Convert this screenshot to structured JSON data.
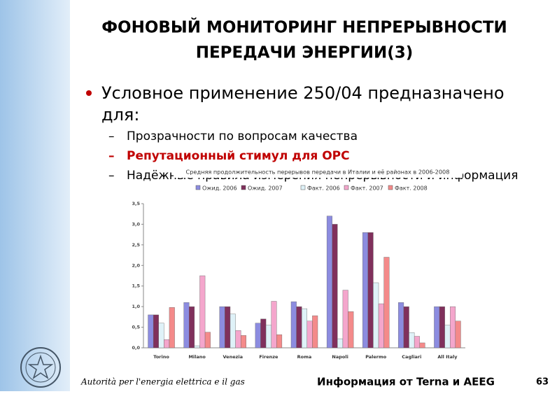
{
  "slide": {
    "title_lines": [
      "ФОНОВЫЙ МОНИТОРИНГ НЕПРЕРЫВНОСТИ",
      "ПЕРЕДАЧИ ЭНЕРГИИ(3)"
    ],
    "bullet_lines": [
      "Условное применение 250/04 предназначено",
      "для:"
    ],
    "subbullets": [
      "Прозрачности по вопросам качества",
      "Репутационный стимул для ОРС",
      "Надёжные правила измерения непрерывности и информация"
    ],
    "footer_left": "Autorità per l'energia elettrica e il gas",
    "footer_center": "Информация от  Terna и AEEG",
    "page_number": 63
  },
  "chart_data": {
    "type": "bar",
    "title": "Средняя продолжительность перерывов передачи в Италии и её районах в 2006-2008",
    "categories": [
      "Torino",
      "Milano",
      "Venezia",
      "Firenze",
      "Roma",
      "Napoli",
      "Palermo",
      "Cagliari",
      "All Italy"
    ],
    "series": [
      {
        "name": "Ожид. 2006",
        "color": "#8c8ce0",
        "values": [
          0.8,
          1.1,
          1.0,
          0.6,
          1.12,
          3.2,
          2.8,
          1.1,
          1.0
        ]
      },
      {
        "name": "Ожид. 2007",
        "color": "#80305c",
        "values": [
          0.8,
          1.0,
          1.0,
          0.7,
          1.0,
          3.0,
          2.8,
          1.0,
          1.0
        ]
      },
      {
        "name": "Факт. 2006",
        "color": "#dff2f8",
        "values": [
          0.6,
          0.05,
          0.82,
          0.55,
          0.95,
          0.22,
          1.58,
          0.37,
          0.55
        ]
      },
      {
        "name": "Факт. 2007",
        "color": "#f4a6cc",
        "values": [
          0.2,
          1.75,
          0.42,
          1.13,
          0.65,
          1.4,
          1.07,
          0.28,
          1.0
        ]
      },
      {
        "name": "Факт. 2008",
        "color": "#f48a8a",
        "values": [
          0.98,
          0.38,
          0.3,
          0.32,
          0.78,
          0.88,
          2.2,
          0.12,
          0.65
        ]
      }
    ],
    "ylim": [
      0,
      3.5
    ],
    "yticks": [
      {
        "value": 0,
        "label": "0,0"
      },
      {
        "value": 0.5,
        "label": "0,5"
      },
      {
        "value": 1,
        "label": "1,0"
      },
      {
        "value": 1.5,
        "label": "1,5"
      },
      {
        "value": 2,
        "label": "2,0"
      },
      {
        "value": 2.5,
        "label": "2,5"
      },
      {
        "value": 3,
        "label": "3,0"
      },
      {
        "value": 3.5,
        "label": "3,5"
      }
    ]
  }
}
